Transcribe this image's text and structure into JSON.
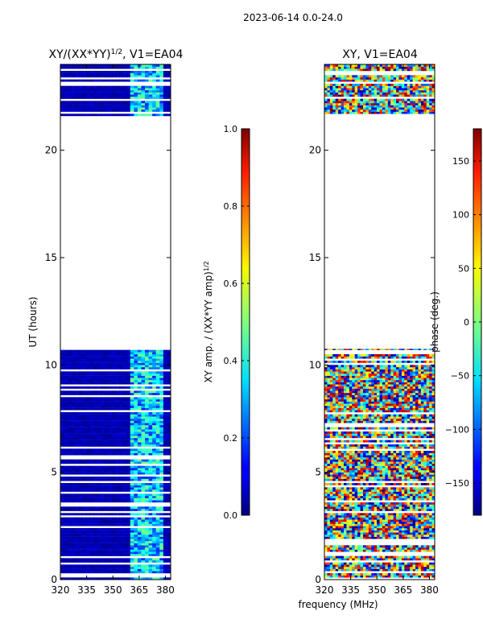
{
  "suptitle": "2023-06-14 0.0-24.0",
  "chart_data": [
    {
      "type": "heatmap",
      "title_main": "XY/(XX*YY)",
      "title_sup": "1/2",
      "title_rest": ", V1=EA04",
      "xlabel": "",
      "ylabel": "UT (hours)",
      "xlim": [
        320,
        383
      ],
      "ylim": [
        0,
        24
      ],
      "xticks": [
        "320",
        "335",
        "350",
        "365",
        "380"
      ],
      "xtick_values": [
        320,
        335,
        350,
        365,
        380
      ],
      "yticks": [
        "0",
        "5",
        "10",
        "15",
        "20"
      ],
      "ytick_values": [
        0,
        5,
        10,
        15,
        20
      ],
      "data_ranges_hours": [
        [
          0,
          10.75
        ],
        [
          21.6,
          24
        ]
      ],
      "colorbar": {
        "label_main": "XY amp. / (XX*YY amp)",
        "label_sup": "1/2",
        "min": 0.0,
        "max": 1.0,
        "ticks": [
          "0.0",
          "0.2",
          "0.4",
          "0.6",
          "0.8",
          "1.0"
        ],
        "tick_values": [
          0.0,
          0.2,
          0.4,
          0.6,
          0.8,
          1.0
        ],
        "colormap": "jet"
      }
    },
    {
      "type": "heatmap",
      "title": "XY, V1=EA04",
      "xlabel": "frequency (MHz)",
      "ylabel": "",
      "xlim": [
        320,
        383
      ],
      "ylim": [
        0,
        24
      ],
      "xticks": [
        "320",
        "335",
        "350",
        "365",
        "380"
      ],
      "xtick_values": [
        320,
        335,
        350,
        365,
        380
      ],
      "yticks": [
        "0",
        "5",
        "10",
        "15",
        "20"
      ],
      "ytick_values": [
        0,
        5,
        10,
        15,
        20
      ],
      "data_ranges_hours": [
        [
          0,
          10.75
        ],
        [
          21.6,
          24
        ]
      ],
      "colorbar": {
        "label": "phase (deg.)",
        "min": -180,
        "max": 180,
        "ticks": [
          "−150",
          "−100",
          "−50",
          "0",
          "50",
          "100",
          "150"
        ],
        "tick_values": [
          -150,
          -100,
          -50,
          0,
          50,
          100,
          150
        ],
        "colormap": "jet"
      }
    }
  ]
}
